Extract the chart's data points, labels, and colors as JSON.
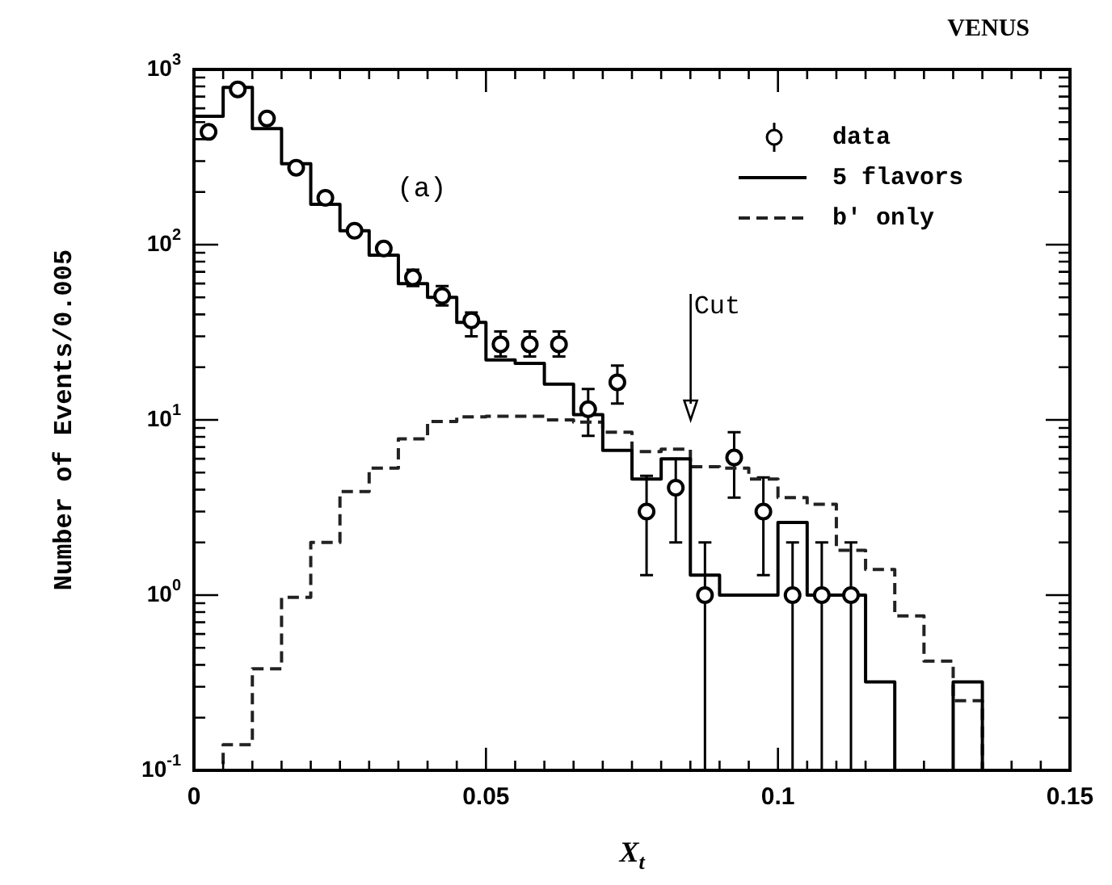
{
  "chart_data": {
    "type": "histogram",
    "title": "VENUS",
    "xlabel": "X$_{t}$",
    "ylabel": "Number of Events/0.005",
    "bins": [
      0,
      0.005,
      0.01,
      0.015,
      0.02,
      0.025,
      0.03,
      0.035,
      0.04,
      0.045,
      0.05,
      0.055,
      0.06,
      0.065,
      0.07,
      0.075,
      0.08,
      0.085,
      0.09,
      0.095,
      0.1,
      0.105,
      0.11,
      0.115,
      0.12,
      0.125,
      0.13,
      0.135,
      0.14,
      0.145,
      0.15
    ],
    "series": [
      {
        "name": "data",
        "type": "scatter",
        "color": "#000000",
        "marker": "circle",
        "x": [
          0.0025,
          0.0075,
          0.0125,
          0.0175,
          0.0225,
          0.0275,
          0.0325,
          0.0375,
          0.0425,
          0.0475,
          0.0525,
          0.0575,
          0.0625,
          0.0675,
          0.0725,
          0.0775,
          0.0825,
          0.0875,
          0.0925,
          0.0975,
          0.1025,
          0.1075,
          0.1125
        ],
        "values": [
          440,
          770,
          525,
          275,
          185,
          120,
          95,
          65,
          51,
          37,
          27,
          27,
          27,
          11.5,
          16.4,
          3.0,
          4.1,
          1.0,
          6.1,
          3.0,
          1.0,
          1.0,
          1.0
        ],
        "errors": [
          null,
          null,
          null,
          null,
          null,
          null,
          null,
          [
            58,
            72
          ],
          [
            45,
            58
          ],
          [
            30,
            41
          ],
          [
            23,
            32
          ],
          [
            23,
            32
          ],
          [
            23,
            32
          ],
          [
            8.1,
            15
          ],
          [
            12.4,
            20.4
          ],
          [
            1.3,
            4.8
          ],
          [
            2.0,
            6.0
          ],
          [
            0.1,
            2.0
          ],
          [
            3.6,
            8.5
          ],
          [
            1.3,
            4.7
          ],
          [
            0.1,
            2.0
          ],
          [
            0.1,
            2.0
          ],
          [
            0.1,
            2.0
          ]
        ]
      },
      {
        "name": "5 flavors",
        "color": "#000000",
        "line_style": "solid",
        "values": [
          540,
          790,
          460,
          290,
          170,
          120,
          87,
          60,
          50,
          36,
          22,
          21,
          16,
          10.7,
          6.7,
          4.6,
          6.0,
          1.3,
          1.0,
          1.0,
          2.6,
          1.0,
          1.0,
          0.32,
          null,
          null,
          0.32,
          null,
          null,
          null
        ]
      },
      {
        "name": "b' only",
        "color": "#222222",
        "line_style": "dashed",
        "values": [
          null,
          0.14,
          0.38,
          0.97,
          2.0,
          3.9,
          5.3,
          7.8,
          9.8,
          10.4,
          10.5,
          10.5,
          10,
          9.7,
          8.5,
          6.6,
          6.8,
          5.4,
          5.3,
          4.6,
          3.6,
          3.3,
          1.8,
          1.4,
          0.76,
          0.42,
          0.25,
          null,
          null,
          null
        ]
      }
    ],
    "xlim": [
      0,
      0.15
    ],
    "xticks": [
      0,
      {
        "value": 0.005,
        "label": null
      },
      {
        "value": 0.01,
        "label": null
      },
      {
        "value": 0.015,
        "label": null
      },
      {
        "value": 0.02,
        "label": null
      },
      {
        "value": 0.025,
        "label": null
      },
      {
        "value": 0.03,
        "label": null
      },
      {
        "value": 0.035,
        "label": null
      },
      {
        "value": 0.04,
        "label": null
      },
      {
        "value": 0.045,
        "label": null
      },
      0.05,
      {
        "value": 0.055,
        "label": null
      },
      {
        "value": 0.06,
        "label": null
      },
      {
        "value": 0.065,
        "label": null
      },
      {
        "value": 0.07,
        "label": null
      },
      {
        "value": 0.075,
        "label": null
      },
      {
        "value": 0.08,
        "label": null
      },
      {
        "value": 0.085,
        "label": null
      },
      {
        "value": 0.09,
        "label": null
      },
      {
        "value": 0.095,
        "label": null
      },
      0.1,
      {
        "value": 0.105,
        "label": null
      },
      {
        "value": 0.11,
        "label": null
      },
      {
        "value": 0.115,
        "label": null
      },
      {
        "value": 0.12,
        "label": null
      },
      {
        "value": 0.125,
        "label": null
      },
      {
        "value": 0.13,
        "label": null
      },
      {
        "value": 0.135,
        "label": null
      },
      {
        "value": 0.14,
        "label": null
      },
      {
        "value": 0.145,
        "label": null
      },
      0.15
    ],
    "ylim": [
      0.1,
      1000
    ],
    "yticks": [
      {
        "value": 0.1,
        "label": "10$^{-1}$"
      },
      {
        "value": 1,
        "label": "10$^{0}$"
      },
      {
        "value": 10,
        "label": "10$^{1}$"
      },
      {
        "value": 100,
        "label": "10$^{2}$"
      },
      {
        "value": 1000,
        "label": "10$^{3}$"
      }
    ],
    "log": "y",
    "grid": false,
    "legend": "top right",
    "annotations": [
      "(a)",
      "Cut"
    ]
  }
}
